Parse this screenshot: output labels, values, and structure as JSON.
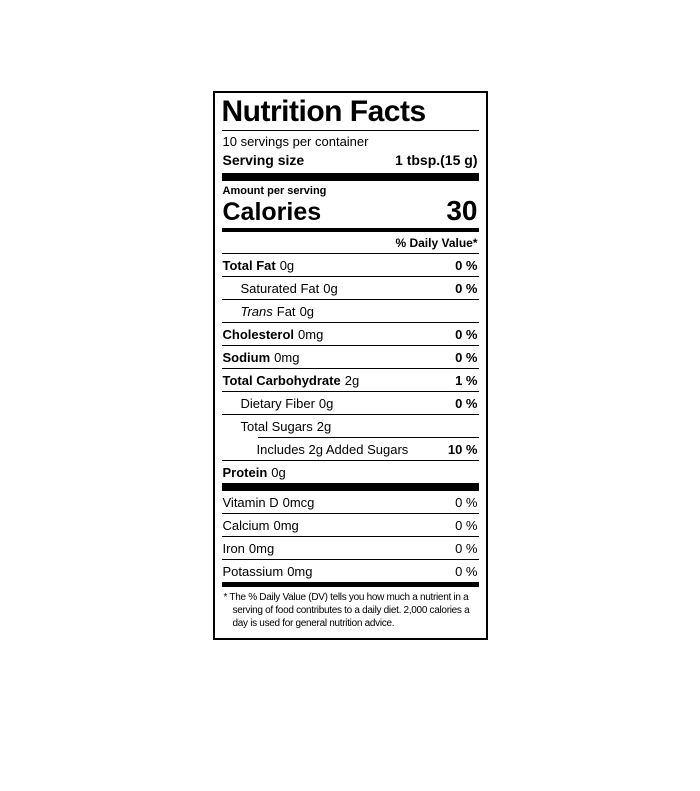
{
  "label": {
    "title": "Nutrition Facts",
    "servings_per_container": "10 servings per container",
    "serving_size": {
      "label": "Serving size",
      "value": "1 tbsp.(15 g)"
    },
    "amount_per_serving": "Amount per serving",
    "calories": {
      "label": "Calories",
      "value": "30"
    },
    "daily_value_header": "% Daily Value*",
    "rows": [
      {
        "name": "Total Fat",
        "amount": "0g",
        "percent": "0 %"
      },
      {
        "name": "Saturated Fat",
        "amount": "0g",
        "percent": "0 %"
      },
      {
        "prefix": "Trans",
        "name": "Fat",
        "amount": "0g",
        "percent": ""
      },
      {
        "name": "Cholesterol",
        "amount": "0mg",
        "percent": "0 %"
      },
      {
        "name": "Sodium",
        "amount": "0mg",
        "percent": "0 %"
      },
      {
        "name": "Total Carbohydrate",
        "amount": "2g",
        "percent": "1 %"
      },
      {
        "name": "Dietary Fiber",
        "amount": "0g",
        "percent": "0 %"
      },
      {
        "name": "Total Sugars",
        "amount": "2g",
        "percent": ""
      },
      {
        "name": "Includes 2g Added Sugars",
        "amount": "",
        "percent": "10 %"
      },
      {
        "name": "Protein",
        "amount": "0g",
        "percent": ""
      }
    ],
    "micronutrients": [
      {
        "name": "Vitamin D",
        "amount": "0mcg",
        "percent": "0 %"
      },
      {
        "name": "Calcium",
        "amount": "0mg",
        "percent": "0 %"
      },
      {
        "name": "Iron",
        "amount": "0mg",
        "percent": "0 %"
      },
      {
        "name": "Potassium",
        "amount": "0mg",
        "percent": "0 %"
      }
    ],
    "footnote": "* The % Daily Value (DV) tells you how much a nutrient in a serving of food contributes to a daily diet. 2,000 calories a day is used for general nutrition advice."
  },
  "colors": {
    "ink": "#000000",
    "background": "#ffffff"
  }
}
